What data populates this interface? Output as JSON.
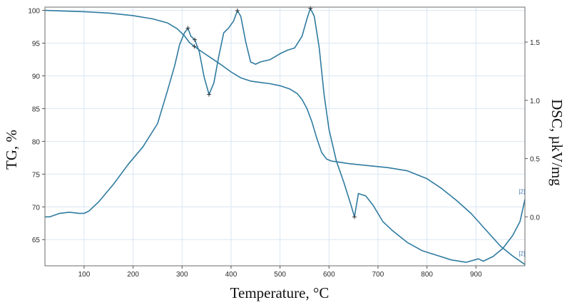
{
  "chart_data": {
    "type": "line",
    "title": "",
    "xlabel": "Temperature, °C",
    "ylabel_left": "TG, %",
    "ylabel_right": "DSC, µkV/mg",
    "xlim": [
      20,
      1000
    ],
    "ylim_left": [
      61,
      100.5
    ],
    "ylim_right": [
      -0.42,
      1.8
    ],
    "x_ticks": [
      100,
      200,
      300,
      400,
      500,
      600,
      700,
      800,
      900
    ],
    "y_left_ticks": [
      65,
      70,
      75,
      80,
      85,
      90,
      95,
      100
    ],
    "y_right_ticks": [
      0.0,
      0.5,
      1.0,
      1.5
    ],
    "y_right_tick_labels": [
      "0.0",
      "0.5",
      "1.0",
      "1.5"
    ],
    "grid": true,
    "line_color": "#2f7ba0",
    "curve_tags": [
      {
        "text": "[2]",
        "x": 994,
        "axis": "right",
        "y": 0.2
      },
      {
        "text": "[2]",
        "x": 994,
        "axis": "right",
        "y": -0.33
      }
    ],
    "series": [
      {
        "axis": "left",
        "x": [
          20,
          100,
          150,
          200,
          240,
          270,
          290,
          305,
          315,
          325,
          340,
          360,
          380,
          400,
          420,
          440,
          460,
          480,
          500,
          520,
          535,
          545,
          555,
          565,
          575,
          585,
          595,
          605,
          615,
          640,
          680,
          720,
          760,
          800,
          830,
          860,
          890,
          920,
          950,
          975,
          1000
        ],
        "y": [
          100,
          99.8,
          99.6,
          99.2,
          98.7,
          98.1,
          97.2,
          96.1,
          95.1,
          94.5,
          93.7,
          92.7,
          91.7,
          90.6,
          89.7,
          89.2,
          89.0,
          88.8,
          88.5,
          88.0,
          87.3,
          86.4,
          85.0,
          83.0,
          80.5,
          78.3,
          77.3,
          77.0,
          76.9,
          76.6,
          76.3,
          76.0,
          75.5,
          74.3,
          72.8,
          71.0,
          69.0,
          66.5,
          64.0,
          62.5,
          61.2
        ]
      },
      {
        "axis": "right",
        "x": [
          20,
          30,
          50,
          70,
          90,
          100,
          110,
          130,
          160,
          190,
          220,
          250,
          270,
          285,
          295,
          305,
          312,
          318,
          326,
          335,
          345,
          355,
          365,
          375,
          385,
          395,
          405,
          413,
          420,
          430,
          440,
          450,
          460,
          480,
          500,
          515,
          530,
          545,
          555,
          562,
          570,
          580,
          590,
          600,
          615,
          630,
          645,
          652,
          660,
          675,
          690,
          710,
          730,
          760,
          790,
          820,
          850,
          880,
          905,
          915,
          935,
          955,
          975,
          990,
          1000
        ],
        "y": [
          0.0,
          0.0,
          0.03,
          0.04,
          0.03,
          0.03,
          0.05,
          0.13,
          0.28,
          0.45,
          0.6,
          0.8,
          1.08,
          1.3,
          1.48,
          1.58,
          1.62,
          1.55,
          1.52,
          1.42,
          1.2,
          1.05,
          1.15,
          1.38,
          1.58,
          1.62,
          1.68,
          1.77,
          1.72,
          1.5,
          1.33,
          1.31,
          1.33,
          1.35,
          1.4,
          1.43,
          1.45,
          1.55,
          1.7,
          1.79,
          1.72,
          1.45,
          1.05,
          0.75,
          0.48,
          0.3,
          0.1,
          0.0,
          0.2,
          0.18,
          0.1,
          -0.04,
          -0.12,
          -0.22,
          -0.29,
          -0.33,
          -0.37,
          -0.39,
          -0.36,
          -0.38,
          -0.34,
          -0.27,
          -0.16,
          -0.04,
          0.15
        ]
      }
    ],
    "markers": [
      {
        "axis": "right",
        "x": 312,
        "y": 1.62
      },
      {
        "axis": "right",
        "x": 326,
        "y": 1.52
      },
      {
        "axis": "right",
        "x": 355,
        "y": 1.05
      },
      {
        "axis": "right",
        "x": 413,
        "y": 1.77
      },
      {
        "axis": "right",
        "x": 562,
        "y": 1.79
      },
      {
        "axis": "right",
        "x": 652,
        "y": 0.0
      },
      {
        "axis": "left",
        "x": 325,
        "y": 94.5
      }
    ]
  }
}
